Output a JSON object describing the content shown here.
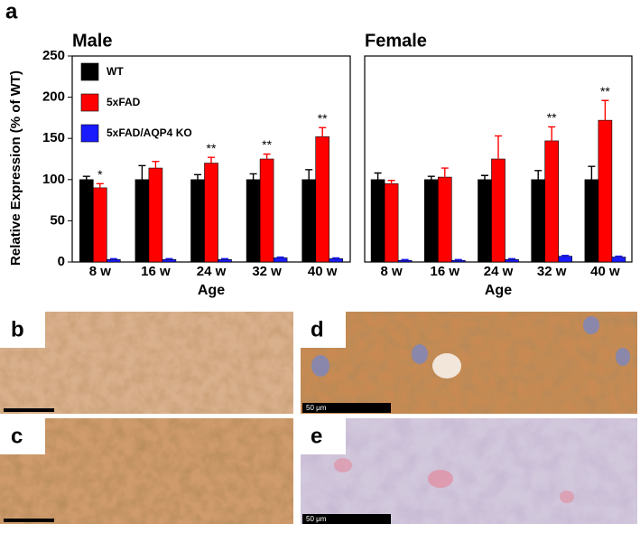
{
  "chart_data": [
    {
      "type": "bar",
      "title": "Male",
      "x_label": "Age",
      "y_label": "Relative Expression (% of WT)",
      "categories": [
        "8 w",
        "16 w",
        "24 w",
        "32 w",
        "40 w"
      ],
      "ylim": [
        0,
        250
      ],
      "yticks": [
        0,
        50,
        100,
        150,
        200,
        250
      ],
      "legend": "upper left",
      "series": [
        {
          "name": "WT",
          "color": "#000000",
          "values": [
            100,
            100,
            100,
            100,
            100
          ],
          "errors": [
            4,
            17,
            6,
            7,
            12
          ]
        },
        {
          "name": "5xFAD",
          "color": "#ff0000",
          "values": [
            90,
            114,
            120,
            125,
            152
          ],
          "errors": [
            5,
            8,
            7,
            6,
            11
          ],
          "significance": [
            "*",
            null,
            "**",
            "**",
            "**"
          ]
        },
        {
          "name": "5xFAD/AQP4 KO",
          "color": "#1a1aff",
          "values": [
            3,
            3,
            3,
            5,
            4
          ],
          "errors": [
            1,
            1,
            1,
            1,
            1
          ]
        }
      ]
    },
    {
      "type": "bar",
      "title": "Female",
      "x_label": "Age",
      "categories": [
        "8 w",
        "16 w",
        "24 w",
        "32 w",
        "40 w"
      ],
      "ylim": [
        0,
        250
      ],
      "series": [
        {
          "color": "#000000",
          "values": [
            100,
            100,
            100,
            100,
            100
          ],
          "errors": [
            8,
            4,
            5,
            11,
            16
          ]
        },
        {
          "color": "#ff0000",
          "values": [
            95,
            103,
            125,
            147,
            172
          ],
          "errors": [
            4,
            11,
            28,
            17,
            24
          ],
          "significance": [
            null,
            null,
            null,
            "**",
            "**"
          ]
        },
        {
          "color": "#1a1aff",
          "values": [
            2,
            2,
            3,
            7,
            6
          ],
          "errors": [
            1,
            1,
            1,
            1,
            1
          ]
        }
      ]
    }
  ],
  "panel_labels": [
    "a",
    "b",
    "c",
    "d",
    "e"
  ],
  "scale_bars": [
    "50 μm",
    "50 μm"
  ]
}
